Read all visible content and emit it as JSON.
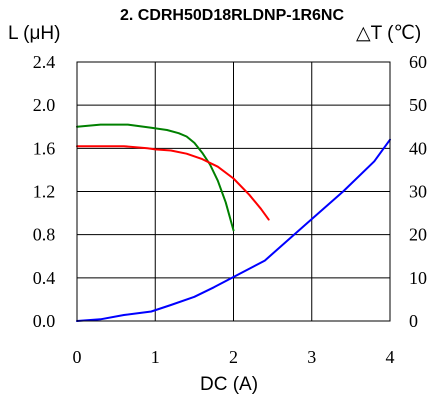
{
  "chart_data": {
    "type": "line",
    "title": "2. CDRH50D18RLDNP-1R6NC",
    "xlabel": "DC (A)",
    "ylabel_left": "L (μH)",
    "ylabel_right": "△T (℃)",
    "xlim": [
      0,
      4
    ],
    "ylim_left": [
      0,
      2.4
    ],
    "ylim_right": [
      0,
      60
    ],
    "x_ticks": [
      "0",
      "1",
      "2",
      "3",
      "4"
    ],
    "y_left_ticks": [
      "0.0",
      "0.4",
      "0.8",
      "1.2",
      "1.6",
      "2.0",
      "2.4"
    ],
    "y_right_ticks": [
      "0",
      "10",
      "20",
      "30",
      "40",
      "50",
      "60"
    ],
    "grid": true,
    "series": [
      {
        "axis": "left",
        "color": "#008000",
        "x": [
          0,
          0.3,
          0.65,
          0.95,
          1.15,
          1.3,
          1.4,
          1.5,
          1.6,
          1.7,
          1.8,
          1.9,
          2.0
        ],
        "y": [
          1.8,
          1.82,
          1.82,
          1.79,
          1.77,
          1.74,
          1.71,
          1.65,
          1.56,
          1.45,
          1.3,
          1.1,
          0.84
        ]
      },
      {
        "axis": "left",
        "color": "#ff0000",
        "x": [
          0,
          0.3,
          0.6,
          0.9,
          1.0,
          1.2,
          1.4,
          1.6,
          1.8,
          2.0,
          2.2,
          2.35,
          2.45
        ],
        "y": [
          1.62,
          1.62,
          1.62,
          1.6,
          1.59,
          1.58,
          1.55,
          1.5,
          1.43,
          1.32,
          1.17,
          1.04,
          0.94
        ]
      },
      {
        "axis": "right",
        "color": "#0000ff",
        "x": [
          0,
          0.3,
          0.6,
          0.95,
          1.2,
          1.5,
          1.75,
          2.0,
          2.4,
          2.9,
          3.4,
          3.8,
          4.0
        ],
        "y": [
          0,
          0.4,
          1.4,
          2.2,
          3.7,
          5.6,
          7.8,
          10.2,
          14,
          22,
          30,
          37,
          42
        ]
      }
    ]
  }
}
